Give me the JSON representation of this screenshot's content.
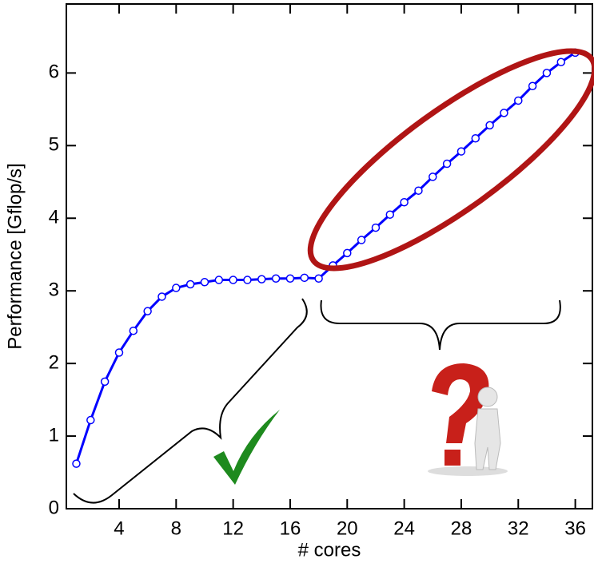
{
  "chart_data": {
    "type": "line",
    "x_label": "# cores",
    "y_label": "Performance [Gflop/s]",
    "x": [
      1,
      2,
      3,
      4,
      5,
      6,
      7,
      8,
      9,
      10,
      11,
      12,
      13,
      14,
      15,
      16,
      17,
      18,
      19,
      20,
      21,
      22,
      23,
      24,
      25,
      26,
      27,
      28,
      29,
      30,
      31,
      32,
      33,
      34,
      35,
      36
    ],
    "series": [
      {
        "color": "#0000ff",
        "values": [
          0.62,
          1.22,
          1.75,
          2.15,
          2.45,
          2.72,
          2.92,
          3.04,
          3.09,
          3.12,
          3.15,
          3.15,
          3.15,
          3.16,
          3.17,
          3.17,
          3.18,
          3.17,
          3.35,
          3.52,
          3.7,
          3.87,
          4.05,
          4.22,
          4.38,
          4.57,
          4.75,
          4.92,
          5.1,
          5.28,
          5.45,
          5.62,
          5.82,
          6.0,
          6.15,
          6.28
        ]
      }
    ],
    "xlim": [
      0.3,
      37.2
    ],
    "ylim": [
      0,
      6.95
    ],
    "xticks": [
      4,
      8,
      12,
      16,
      20,
      24,
      28,
      32,
      36
    ],
    "yticks": [
      0,
      1,
      2,
      3,
      4,
      5,
      6
    ]
  }
}
